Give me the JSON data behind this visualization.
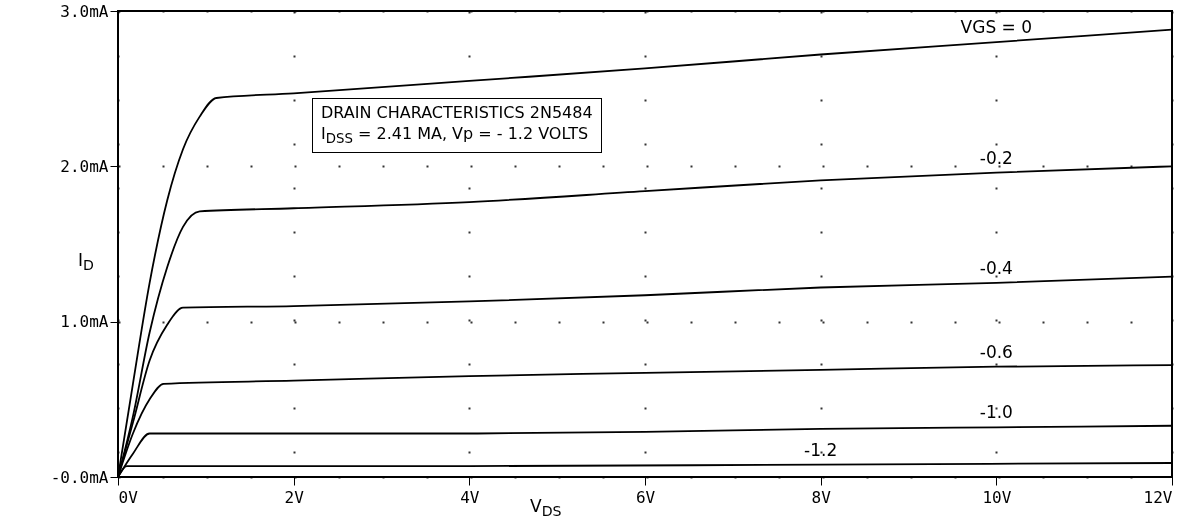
{
  "chart_data": {
    "type": "line",
    "xlabel": "V$_{DS}$",
    "ylabel": "I$_{D}$",
    "annotations": [
      "DRAIN CHARACTERISTICS 2N5484",
      "I$_{DSS}$ = 2.41 MA, Vp = - 1.2 VOLTS"
    ],
    "xlim": [
      0,
      12
    ],
    "xticks": [
      {
        "value": 0,
        "label": "0V"
      },
      {
        "value": 2,
        "label": "2V"
      },
      {
        "value": 4,
        "label": "4V"
      },
      {
        "value": 6,
        "label": "6V"
      },
      {
        "value": 8,
        "label": "8V"
      },
      {
        "value": 10,
        "label": "10V"
      },
      {
        "value": 12,
        "label": "12V"
      }
    ],
    "ylim": [
      0,
      3
    ],
    "yticks": [
      {
        "value": 0,
        "label": "-0.0mA"
      },
      {
        "value": 1,
        "label": "1.0mA"
      },
      {
        "value": 2,
        "label": "2.0mA"
      },
      {
        "value": 3,
        "label": "3.0mA"
      }
    ],
    "grid": true,
    "line_style": "solid",
    "series": [
      {
        "name": "VGS = 0",
        "color": "#000000",
        "x": [
          0,
          0.17,
          0.36,
          0.56,
          0.74,
          0.93,
          1.12,
          2,
          4,
          6,
          8,
          10,
          12
        ],
        "values": [
          0,
          0.6,
          1.25,
          1.78,
          2.11,
          2.32,
          2.44,
          2.47,
          2.55,
          2.63,
          2.72,
          2.8,
          2.88
        ]
      },
      {
        "name": "-0.2",
        "color": "#000000",
        "x": [
          0,
          0.17,
          0.36,
          0.56,
          0.74,
          0.93,
          2,
          4,
          6,
          8,
          10,
          12
        ],
        "values": [
          0,
          0.39,
          0.93,
          1.35,
          1.61,
          1.71,
          1.73,
          1.77,
          1.84,
          1.91,
          1.96,
          2.0
        ]
      },
      {
        "name": "-0.4",
        "color": "#000000",
        "x": [
          0,
          0.17,
          0.36,
          0.56,
          0.74,
          2,
          4,
          6,
          8,
          10,
          12
        ],
        "values": [
          0,
          0.35,
          0.75,
          0.98,
          1.09,
          1.1,
          1.13,
          1.17,
          1.22,
          1.25,
          1.29
        ]
      },
      {
        "name": "-0.6",
        "color": "#000000",
        "x": [
          0,
          0.17,
          0.36,
          0.52,
          2,
          4,
          6,
          8,
          10,
          12
        ],
        "values": [
          0,
          0.28,
          0.5,
          0.6,
          0.62,
          0.65,
          0.67,
          0.69,
          0.71,
          0.72
        ]
      },
      {
        "name": "-1.0",
        "color": "#000000",
        "x": [
          0,
          0.17,
          0.36,
          2,
          4,
          6,
          8,
          10,
          12
        ],
        "values": [
          0,
          0.15,
          0.28,
          0.28,
          0.28,
          0.29,
          0.31,
          0.32,
          0.33
        ]
      },
      {
        "name": "-1.2",
        "color": "#000000",
        "x": [
          0,
          0.1,
          4,
          8,
          12
        ],
        "values": [
          0,
          0.07,
          0.07,
          0.08,
          0.09
        ]
      }
    ]
  }
}
